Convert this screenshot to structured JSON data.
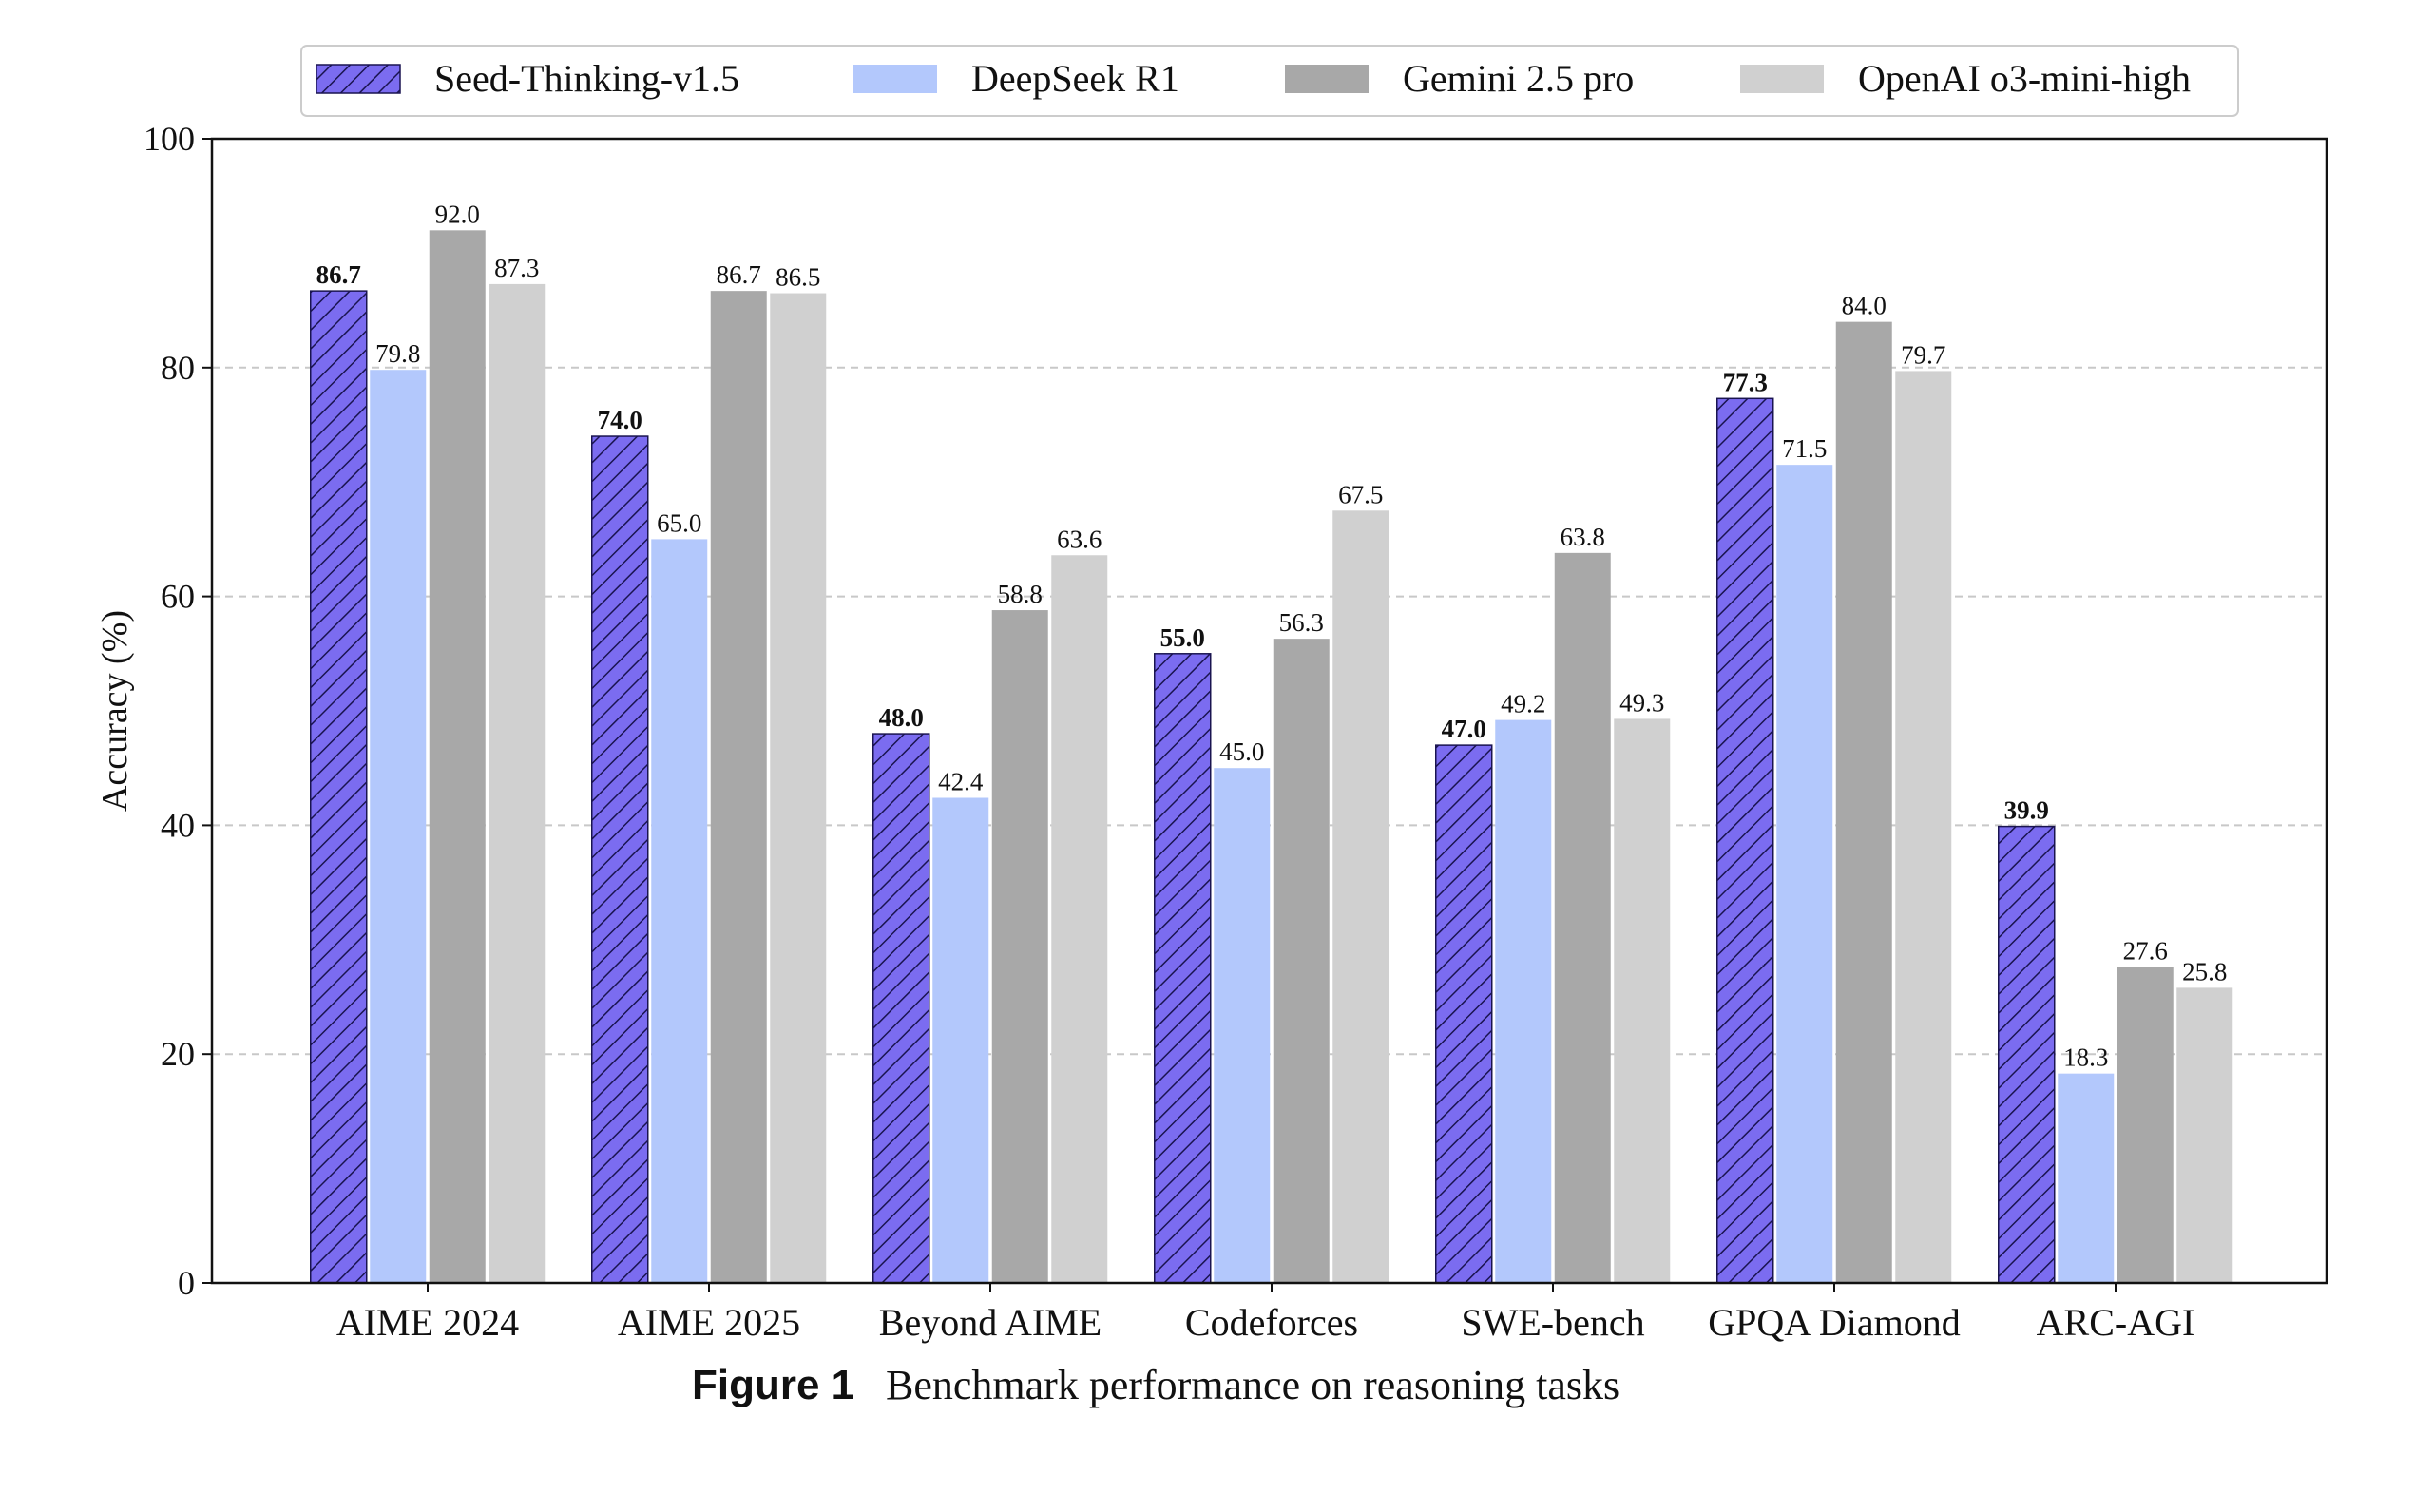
{
  "chart_data": {
    "type": "bar",
    "ylabel": "Accuracy (%)",
    "xlabel": "",
    "ylim": [
      0,
      100
    ],
    "yticks": [
      0,
      20,
      40,
      60,
      80,
      100
    ],
    "grid": "horizontal dashed",
    "legend_position": "top",
    "categories": [
      "AIME 2024",
      "AIME 2025",
      "Beyond AIME",
      "Codeforces",
      "SWE-bench",
      "GPQA Diamond",
      "ARC-AGI"
    ],
    "series": [
      {
        "name": "Seed-Thinking-v1.5",
        "color": "#7b6cf0",
        "hatched": true,
        "bold_labels": true,
        "values": [
          86.7,
          74.0,
          48.0,
          55.0,
          47.0,
          77.3,
          39.9
        ]
      },
      {
        "name": "DeepSeek R1",
        "color": "#b3c8fc",
        "hatched": false,
        "bold_labels": false,
        "values": [
          79.8,
          65.0,
          42.4,
          45.0,
          49.2,
          71.5,
          18.3
        ]
      },
      {
        "name": "Gemini 2.5 pro",
        "color": "#a8a8a8",
        "hatched": false,
        "bold_labels": false,
        "values": [
          92.0,
          86.7,
          58.8,
          56.3,
          63.8,
          84.0,
          27.6
        ]
      },
      {
        "name": "OpenAI o3-mini-high",
        "color": "#d0d0d0",
        "hatched": false,
        "bold_labels": false,
        "values": [
          87.3,
          86.5,
          63.6,
          67.5,
          49.3,
          79.7,
          25.8
        ]
      }
    ]
  },
  "caption": {
    "figure_label": "Figure 1",
    "text": "Benchmark performance on reasoning tasks"
  }
}
